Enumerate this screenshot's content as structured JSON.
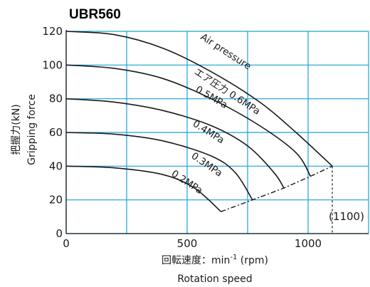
{
  "chart_data": {
    "type": "line",
    "title": "UBR560",
    "xlabel_jp": "回転速度：min",
    "xlabel_sup": "-1",
    "xlabel_unit": " (rpm)",
    "xlabel_en": "Rotation speed",
    "ylabel_jp": "把握力(kN)",
    "ylabel_en": "Gripping force",
    "xlim": [
      0,
      1250
    ],
    "ylim": [
      0,
      120
    ],
    "x_ticks": [
      0,
      500,
      1000
    ],
    "y_ticks": [
      0,
      20,
      40,
      60,
      80,
      100,
      120
    ],
    "x_gridlines": [
      0,
      250,
      500,
      750,
      1000,
      1250
    ],
    "y_gridlines": [
      0,
      20,
      40,
      60,
      80,
      100,
      120
    ],
    "grid": true,
    "max_speed_label": "(1100)",
    "max_speed": 1100,
    "series_label_line1": "Air pressure",
    "series_label_line2_prefix": "エア圧力",
    "series": [
      {
        "name": "0.6MPa",
        "f0": 120,
        "points": [
          [
            0,
            120
          ],
          [
            200,
            118
          ],
          [
            400,
            110
          ],
          [
            600,
            96
          ],
          [
            800,
            78
          ],
          [
            950,
            60
          ],
          [
            1100,
            40
          ]
        ]
      },
      {
        "name": "0.5MPa",
        "f0": 100,
        "points": [
          [
            0,
            100
          ],
          [
            200,
            98
          ],
          [
            400,
            92
          ],
          [
            600,
            80
          ],
          [
            800,
            64
          ],
          [
            950,
            48
          ],
          [
            1010,
            34
          ]
        ]
      },
      {
        "name": "0.4MPa",
        "f0": 80,
        "points": [
          [
            0,
            80
          ],
          [
            200,
            78
          ],
          [
            400,
            73
          ],
          [
            600,
            64
          ],
          [
            750,
            52
          ],
          [
            860,
            36
          ],
          [
            900,
            27
          ]
        ]
      },
      {
        "name": "0.3MPa",
        "f0": 60,
        "points": [
          [
            0,
            60
          ],
          [
            200,
            59
          ],
          [
            400,
            55
          ],
          [
            600,
            46
          ],
          [
            700,
            36
          ],
          [
            770,
            20
          ]
        ]
      },
      {
        "name": "0.2MPa",
        "f0": 40,
        "points": [
          [
            0,
            40
          ],
          [
            200,
            39
          ],
          [
            400,
            35
          ],
          [
            530,
            27
          ],
          [
            640,
            13
          ]
        ]
      }
    ],
    "envelope": [
      [
        640,
        13
      ],
      [
        770,
        20
      ],
      [
        900,
        27
      ],
      [
        1010,
        34
      ],
      [
        1100,
        40
      ]
    ]
  }
}
